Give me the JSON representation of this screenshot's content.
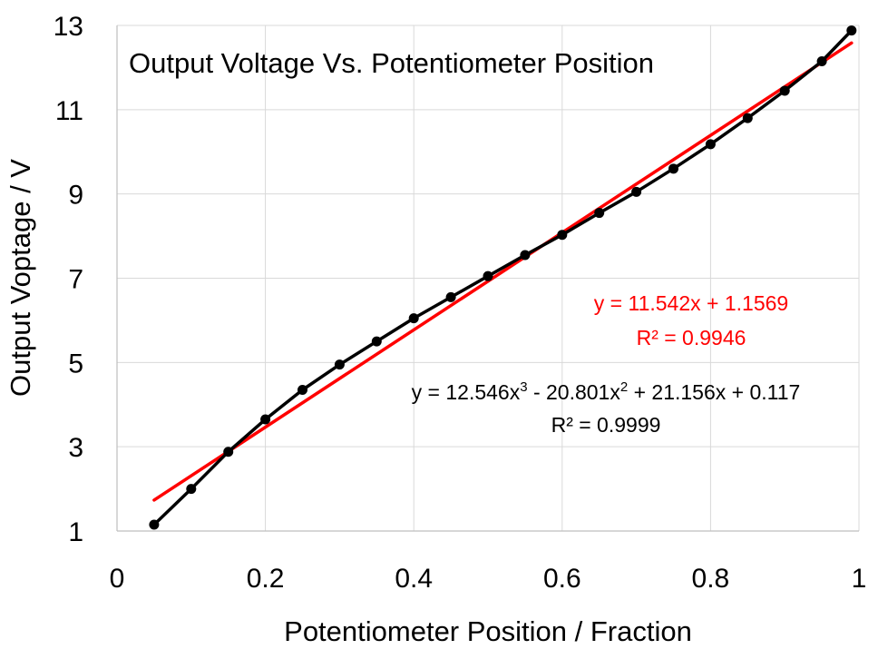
{
  "chart_data": {
    "type": "scatter",
    "title": "Output Voltage Vs. Potentiometer Position",
    "xlabel": "Potentiometer Position / Fraction",
    "ylabel": "Output Voptage / V",
    "xlim": [
      0,
      1
    ],
    "ylim": [
      1,
      13
    ],
    "x_ticks": [
      "0",
      "0.2",
      "0.4",
      "0.6",
      "0.8",
      "1"
    ],
    "y_ticks": [
      "1",
      "3",
      "5",
      "7",
      "9",
      "11",
      "13"
    ],
    "grid": true,
    "legend": "none",
    "series": [
      {
        "x": [
          0.05,
          0.1,
          0.15,
          0.2,
          0.25,
          0.3,
          0.35,
          0.4,
          0.45,
          0.5,
          0.55,
          0.6,
          0.65,
          0.7,
          0.75,
          0.8,
          0.85,
          0.9,
          0.95,
          0.99
        ],
        "y": [
          1.15,
          2.0,
          2.88,
          3.65,
          4.35,
          4.95,
          5.5,
          6.05,
          6.55,
          7.05,
          7.55,
          8.03,
          8.55,
          9.05,
          9.6,
          10.18,
          10.8,
          11.45,
          12.15,
          12.88
        ],
        "color": "#000000",
        "marker": "circle"
      }
    ],
    "trendlines": [
      {
        "kind": "linear",
        "color": "#ff0000",
        "slope": 11.542,
        "intercept": 1.1569,
        "x_range": [
          0.05,
          0.99
        ],
        "equation": "y = 11.542x + 1.1569",
        "r2": "R² = 0.9946"
      },
      {
        "kind": "polynomial",
        "color": "#000000",
        "coefficients": [
          12.546,
          -20.801,
          21.156,
          0.117
        ],
        "x_range": [
          0.05,
          0.99
        ],
        "equation_parts": [
          "y = 12.546x",
          "3",
          " - 20.801x",
          "2",
          " + 21.156x + 0.117"
        ],
        "r2": "R² = 0.9999"
      }
    ]
  }
}
